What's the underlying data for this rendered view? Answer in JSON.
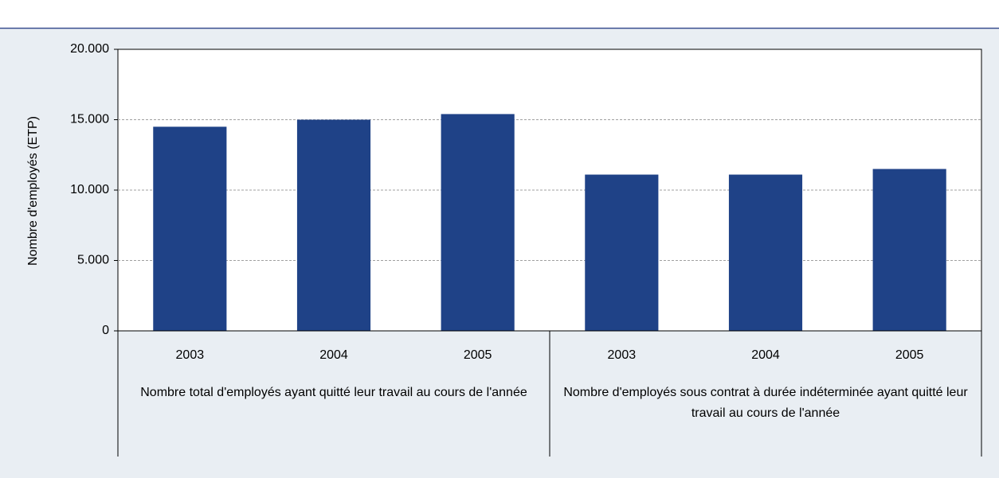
{
  "chart_data": {
    "type": "bar",
    "y_label": "Nombre d'employés (ETP)",
    "categories": [
      "2003",
      "2004",
      "2005",
      "2003",
      "2004",
      "2005"
    ],
    "group_labels": [
      "Nombre total d'employés ayant quitté leur travail au cours de l'année",
      "Nombre d'employés sous contrat à durée indéterminée ayant quitté leur travail au cours de l'année"
    ],
    "values": [
      14500,
      15000,
      15400,
      11100,
      11100,
      11500
    ],
    "color": "#1f4287",
    "ylim": [
      0,
      20000
    ],
    "yticks": [
      0,
      {
        "value": 5000,
        "label": "5.000"
      },
      {
        "value": 10000,
        "label": "10.000"
      },
      {
        "value": 15000,
        "label": "15.000"
      },
      {
        "value": 20000,
        "label": "20.000"
      }
    ],
    "grid": true
  }
}
